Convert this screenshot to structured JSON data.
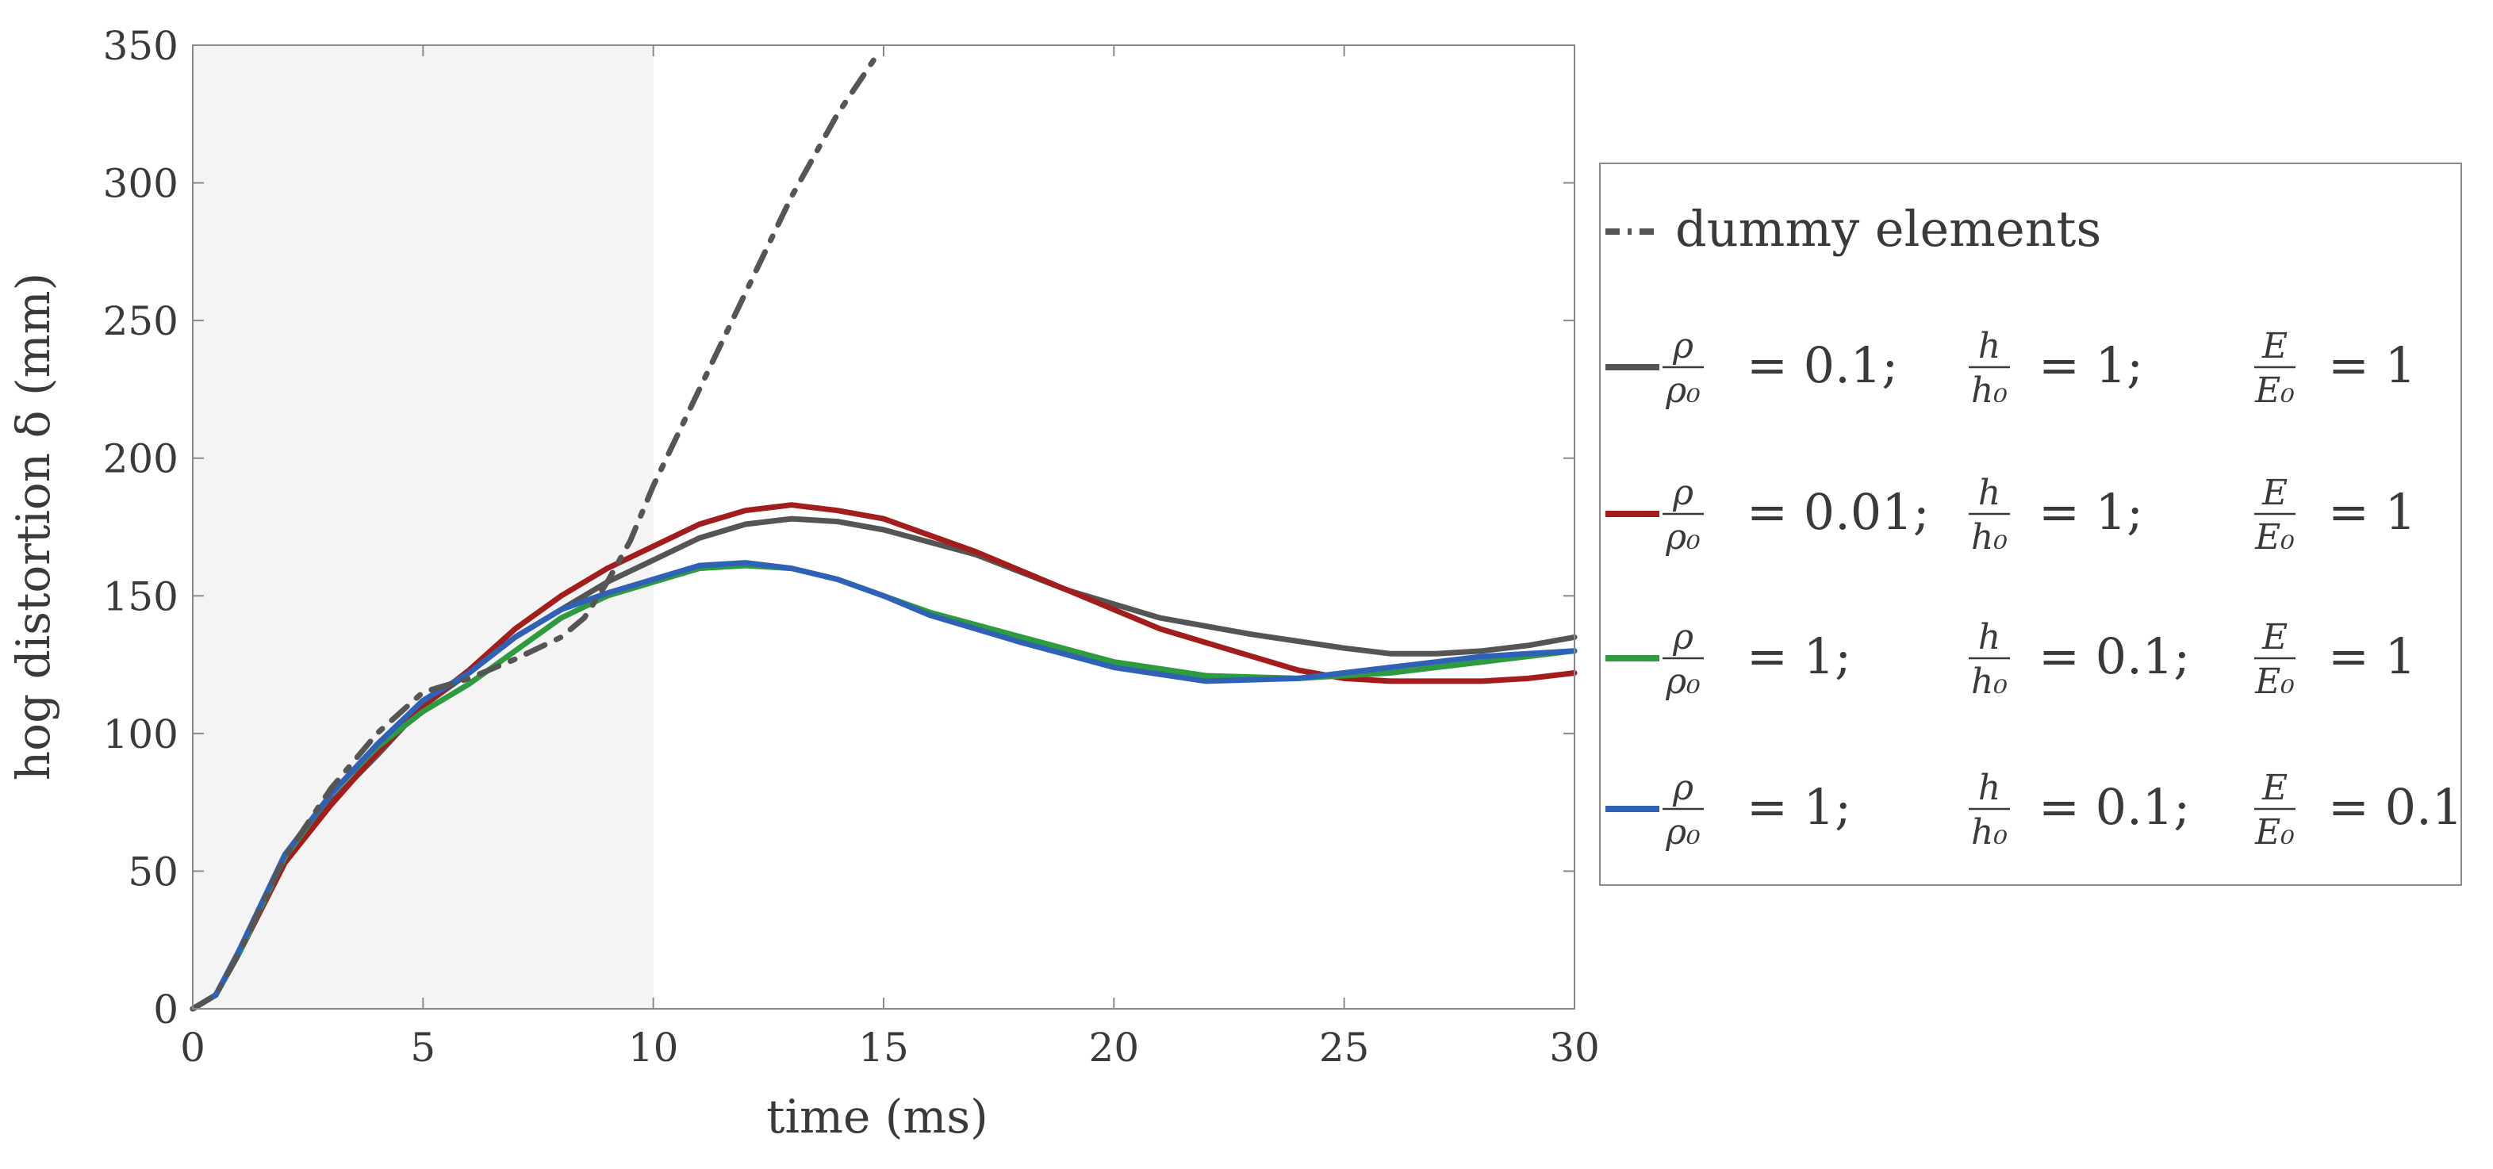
{
  "chart_data": {
    "type": "line",
    "xlabel": "time (ms)",
    "ylabel": "hog distortion δ (mm)",
    "xlim": [
      0,
      30
    ],
    "ylim": [
      0,
      350
    ],
    "xticks": [
      0,
      5,
      10,
      15,
      20,
      25,
      30
    ],
    "yticks": [
      0,
      50,
      100,
      150,
      200,
      250,
      300,
      350
    ],
    "shaded_region": {
      "x_from": 0,
      "x_to": 10,
      "color": "#f4f4f4"
    },
    "legend_position": "right",
    "series": [
      {
        "name": "dummy elements",
        "label": "dummy elements",
        "color": "#555555",
        "style": "dashdot",
        "x": [
          0,
          0.5,
          1,
          2,
          3,
          4,
          5,
          6,
          7,
          8,
          8.5,
          9,
          9.5,
          10,
          11,
          12,
          13,
          14,
          14.8
        ],
        "y": [
          0,
          5,
          20,
          55,
          80,
          100,
          115,
          120,
          127,
          135,
          142,
          155,
          170,
          190,
          225,
          260,
          295,
          325,
          345
        ]
      },
      {
        "name": "rho 0.1",
        "label": {
          "rho": "= 0.1;",
          "h": "= 1;",
          "E": "= 1"
        },
        "color": "#555555",
        "style": "solid",
        "x": [
          0,
          0.5,
          1,
          2,
          3,
          4,
          5,
          6,
          7,
          8,
          9,
          10,
          11,
          12,
          13,
          14,
          15,
          17,
          19,
          21,
          23,
          25,
          26,
          27,
          28,
          29,
          30
        ],
        "y": [
          0,
          5,
          20,
          55,
          75,
          92,
          110,
          122,
          135,
          145,
          155,
          163,
          171,
          176,
          178,
          177,
          174,
          165,
          152,
          142,
          136,
          131,
          129,
          129,
          130,
          132,
          135
        ]
      },
      {
        "name": "rho 0.01",
        "label": {
          "rho": "= 0.01;",
          "h": "= 1;",
          "E": "= 1"
        },
        "color": "#a31d1d",
        "style": "solid",
        "x": [
          0,
          0.5,
          1,
          2,
          3,
          4,
          5,
          6,
          7,
          8,
          9,
          10,
          11,
          12,
          13,
          14,
          15,
          17,
          19,
          21,
          23,
          24,
          25,
          26,
          27,
          28,
          29,
          30
        ],
        "y": [
          0,
          5,
          20,
          53,
          74,
          93,
          110,
          123,
          138,
          150,
          160,
          168,
          176,
          181,
          183,
          181,
          178,
          166,
          152,
          138,
          128,
          123,
          120,
          119,
          119,
          119,
          120,
          122
        ]
      },
      {
        "name": "h 0.1",
        "label": {
          "rho": "= 1;",
          "h": "= 0.1;",
          "E": "= 1"
        },
        "color": "#2e9b3e",
        "style": "solid",
        "x": [
          0,
          0.5,
          1,
          2,
          3,
          4,
          5,
          6,
          7,
          8,
          9,
          10,
          11,
          12,
          13,
          14,
          15,
          16,
          18,
          20,
          22,
          24,
          26,
          28,
          30
        ],
        "y": [
          0,
          5,
          20,
          55,
          78,
          95,
          108,
          118,
          130,
          142,
          150,
          155,
          160,
          161,
          160,
          156,
          150,
          144,
          135,
          126,
          121,
          120,
          122,
          126,
          130
        ]
      },
      {
        "name": "E 0.1",
        "label": {
          "rho": "= 1;",
          "h": "= 0.1;",
          "E": "= 0.1"
        },
        "color": "#2f62b6",
        "style": "solid",
        "x": [
          0,
          0.5,
          1,
          2,
          3,
          4,
          5,
          6,
          7,
          8,
          9,
          10,
          11,
          12,
          13,
          14,
          15,
          16,
          18,
          20,
          22,
          24,
          26,
          28,
          30
        ],
        "y": [
          0,
          5,
          21,
          56,
          78,
          96,
          112,
          122,
          135,
          145,
          151,
          156,
          161,
          162,
          160,
          156,
          150,
          143,
          133,
          124,
          119,
          120,
          124,
          128,
          130
        ]
      }
    ]
  }
}
